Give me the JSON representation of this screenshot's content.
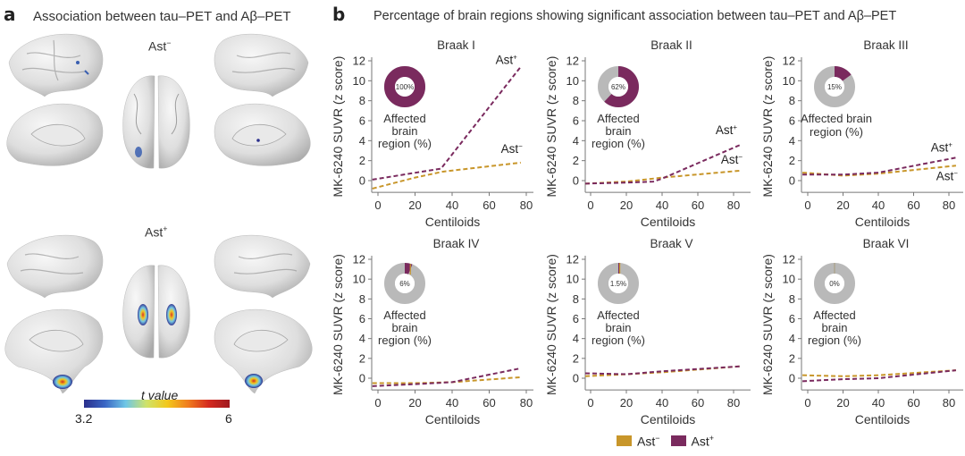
{
  "panel_a": {
    "letter": "a",
    "title": "Association between tau–PET and Aβ–PET",
    "groups": [
      {
        "name": "Ast",
        "sign": "−",
        "description": "sparse small blue clusters (lateral parietal, dorsal view, medial)"
      },
      {
        "name": "Ast",
        "sign": "+",
        "description": "clusters in medial temporal lobe, high t values"
      }
    ],
    "colorbar": {
      "label": "t value",
      "min_label": "3.2",
      "max_label": "6",
      "colors": [
        "#2b2f8c",
        "#3a66c4",
        "#6ec6e6",
        "#cfe36a",
        "#f2c81c",
        "#f07d1e",
        "#d42a1f",
        "#a0191f"
      ]
    }
  },
  "panel_b": {
    "letter": "b",
    "title": "Percentage of brain regions showing significant association between tau–PET and Aβ–PET",
    "ylabel": "MK-6240 SUVR (z score)",
    "xlabel": "Centiloids",
    "pie_label_lines": [
      "Affected",
      "brain",
      "region (%)"
    ],
    "legend": [
      {
        "label": "Ast",
        "sign": "−",
        "color": "#c8962a"
      },
      {
        "label": "Ast",
        "sign": "+",
        "color": "#7a2a5e"
      }
    ]
  },
  "chart_data": [
    {
      "type": "line",
      "title": "Braak I",
      "xlabel": "Centiloids",
      "ylabel": "MK-6240 SUVR (z score)",
      "xticks": [
        0,
        20,
        40,
        60,
        80
      ],
      "yticks": [
        0,
        2,
        4,
        6,
        8,
        10,
        12
      ],
      "xlim": [
        -3,
        85
      ],
      "ylim": [
        -1,
        12.5
      ],
      "affected_pct": 100,
      "affected_label": "100%",
      "series": [
        {
          "name": "Ast−",
          "x": [
            -3,
            20,
            35,
            77
          ],
          "y": [
            -0.8,
            0.3,
            0.9,
            1.8
          ]
        },
        {
          "name": "Ast+",
          "x": [
            -3,
            34,
            77
          ],
          "y": [
            0.1,
            1.2,
            11.4
          ]
        }
      ],
      "annotations": [
        {
          "text": "Ast+",
          "near": "Ast+ end"
        },
        {
          "text": "Ast−",
          "near": "Ast− end"
        }
      ]
    },
    {
      "type": "line",
      "title": "Braak II",
      "xlabel": "Centiloids",
      "ylabel": "MK-6240 SUVR (z score)",
      "xticks": [
        0,
        20,
        40,
        60,
        80
      ],
      "yticks": [
        0,
        2,
        4,
        6,
        8,
        10,
        12
      ],
      "xlim": [
        -3,
        92
      ],
      "ylim": [
        -1,
        12.5
      ],
      "affected_pct": 62,
      "affected_label": "62%",
      "series": [
        {
          "name": "Ast−",
          "x": [
            -3,
            20,
            40,
            84
          ],
          "y": [
            -0.3,
            -0.1,
            0.3,
            1.0
          ]
        },
        {
          "name": "Ast+",
          "x": [
            -3,
            20,
            35,
            40,
            84
          ],
          "y": [
            -0.3,
            -0.2,
            -0.1,
            0.2,
            3.6
          ]
        }
      ],
      "annotations": [
        {
          "text": "Ast+",
          "near": "Ast+ end"
        },
        {
          "text": "Ast−",
          "near": "Ast− end"
        }
      ]
    },
    {
      "type": "line",
      "title": "Braak III",
      "xlabel": "Centiloids",
      "ylabel": "MK-6240 SUVR (z score)",
      "xticks": [
        0,
        20,
        40,
        60,
        80
      ],
      "yticks": [
        0,
        2,
        4,
        6,
        8,
        10,
        12
      ],
      "xlim": [
        -3,
        92
      ],
      "ylim": [
        -1,
        12.5
      ],
      "affected_pct": 15,
      "affected_label": "15%",
      "series": [
        {
          "name": "Ast−",
          "x": [
            -3,
            20,
            40,
            84
          ],
          "y": [
            0.8,
            0.5,
            0.7,
            1.5
          ]
        },
        {
          "name": "Ast+",
          "x": [
            -3,
            20,
            40,
            84
          ],
          "y": [
            0.6,
            0.6,
            0.8,
            2.3
          ]
        }
      ],
      "annotations": [
        {
          "text": "Ast+",
          "near": "Ast+ end"
        },
        {
          "text": "Ast−",
          "near": "below Ast− end"
        }
      ]
    },
    {
      "type": "line",
      "title": "Braak IV",
      "xlabel": "Centiloids",
      "ylabel": "MK-6240 SUVR (z score)",
      "xticks": [
        0,
        20,
        40,
        60,
        80
      ],
      "yticks": [
        0,
        2,
        4,
        6,
        8,
        10,
        12
      ],
      "xlim": [
        -3,
        85
      ],
      "ylim": [
        -1,
        12.5
      ],
      "affected_pct": 6,
      "affected_label": "6%",
      "series": [
        {
          "name": "Ast−",
          "x": [
            -3,
            20,
            40,
            77
          ],
          "y": [
            -0.5,
            -0.5,
            -0.4,
            0.1
          ]
        },
        {
          "name": "Ast+",
          "x": [
            -3,
            20,
            40,
            77
          ],
          "y": [
            -0.8,
            -0.6,
            -0.4,
            1.0
          ]
        }
      ],
      "annotations": []
    },
    {
      "type": "line",
      "title": "Braak V",
      "xlabel": "Centiloids",
      "ylabel": "MK-6240 SUVR (z score)",
      "xticks": [
        0,
        20,
        40,
        60,
        80
      ],
      "yticks": [
        0,
        2,
        4,
        6,
        8,
        10,
        12
      ],
      "xlim": [
        -3,
        92
      ],
      "ylim": [
        -1,
        12.5
      ],
      "affected_pct": 1.5,
      "affected_label": "1.5%",
      "series": [
        {
          "name": "Ast−",
          "x": [
            -3,
            20,
            40,
            84
          ],
          "y": [
            0.2,
            0.4,
            0.6,
            1.2
          ]
        },
        {
          "name": "Ast+",
          "x": [
            -3,
            20,
            40,
            84
          ],
          "y": [
            0.5,
            0.4,
            0.7,
            1.2
          ]
        }
      ],
      "annotations": []
    },
    {
      "type": "line",
      "title": "Braak VI",
      "xlabel": "Centiloids",
      "ylabel": "MK-6240 SUVR (z score)",
      "xticks": [
        0,
        20,
        40,
        60,
        80
      ],
      "yticks": [
        0,
        2,
        4,
        6,
        8,
        10,
        12
      ],
      "xlim": [
        -3,
        92
      ],
      "ylim": [
        -1,
        12.5
      ],
      "affected_pct": 0,
      "affected_label": "0%",
      "series": [
        {
          "name": "Ast−",
          "x": [
            -3,
            20,
            40,
            84
          ],
          "y": [
            0.3,
            0.2,
            0.3,
            0.8
          ]
        },
        {
          "name": "Ast+",
          "x": [
            -3,
            20,
            40,
            84
          ],
          "y": [
            -0.3,
            -0.1,
            0.0,
            0.8
          ]
        }
      ],
      "annotations": []
    }
  ]
}
